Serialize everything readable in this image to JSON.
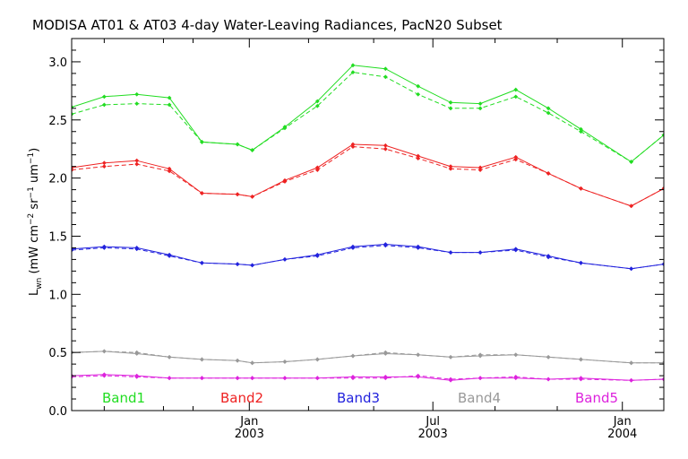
{
  "chart_data": {
    "type": "line",
    "title": "MODISA AT01 & AT03 4-day Water-Leaving Radiances, PacN20 Subset",
    "ylabel_main": "L",
    "ylabel_sub": "wn",
    "ylabel_units": "(mW cm",
    "ylabel_exp1": "−2",
    "ylabel_sr": "sr",
    "ylabel_exp2": "−1",
    "ylabel_um": "um",
    "ylabel_exp3": "−1",
    "ylabel_close": ")",
    "ylim": [
      0.0,
      3.2
    ],
    "y_ticks": [
      "0.0",
      "0.5",
      "1.0",
      "1.5",
      "2.0",
      "2.5",
      "3.0"
    ],
    "xlim": [
      0,
      100
    ],
    "x_ticks": [
      {
        "month": "Jan",
        "year": "2003",
        "x": 30
      },
      {
        "month": "Jul",
        "year": "2003",
        "x": 61
      },
      {
        "month": "Jan",
        "year": "2004",
        "x": 93
      }
    ],
    "x": [
      0,
      5.5,
      11,
      16.5,
      22,
      28,
      30.5,
      36,
      41.5,
      47.5,
      53,
      58.5,
      64,
      69,
      75,
      80.5,
      86,
      94.5,
      100
    ],
    "series": [
      {
        "name": "Band1",
        "color": "#22dd22",
        "solid": [
          2.61,
          2.7,
          2.72,
          2.69,
          2.31,
          2.29,
          2.24,
          2.44,
          2.66,
          2.97,
          2.94,
          2.79,
          2.65,
          2.64,
          2.76,
          2.6,
          2.42,
          2.14,
          2.37
        ],
        "dashed": [
          2.55,
          2.63,
          2.64,
          2.63,
          2.31,
          2.29,
          2.24,
          2.43,
          2.62,
          2.91,
          2.87,
          2.72,
          2.6,
          2.6,
          2.7,
          2.56,
          2.4,
          2.14,
          2.37
        ]
      },
      {
        "name": "Band2",
        "color": "#ee2222",
        "solid": [
          2.09,
          2.13,
          2.15,
          2.08,
          1.87,
          1.86,
          1.84,
          1.98,
          2.09,
          2.29,
          2.28,
          2.19,
          2.1,
          2.09,
          2.18,
          2.04,
          1.91,
          1.76,
          1.91
        ],
        "dashed": [
          2.07,
          2.1,
          2.12,
          2.06,
          1.87,
          1.86,
          1.84,
          1.97,
          2.07,
          2.27,
          2.25,
          2.17,
          2.08,
          2.07,
          2.16,
          2.04,
          1.91,
          1.76,
          1.91
        ]
      },
      {
        "name": "Band3",
        "color": "#2222dd",
        "solid": [
          1.39,
          1.41,
          1.4,
          1.34,
          1.27,
          1.26,
          1.25,
          1.3,
          1.34,
          1.41,
          1.43,
          1.41,
          1.36,
          1.36,
          1.39,
          1.33,
          1.27,
          1.22,
          1.26
        ],
        "dashed": [
          1.38,
          1.4,
          1.39,
          1.33,
          1.27,
          1.26,
          1.25,
          1.3,
          1.33,
          1.4,
          1.42,
          1.4,
          1.36,
          1.36,
          1.38,
          1.32,
          1.27,
          1.22,
          1.26
        ]
      },
      {
        "name": "Band4",
        "color": "#999999",
        "solid": [
          0.5,
          0.51,
          0.49,
          0.46,
          0.44,
          0.43,
          0.41,
          0.42,
          0.44,
          0.47,
          0.49,
          0.48,
          0.46,
          0.47,
          0.48,
          0.46,
          0.44,
          0.41,
          0.41
        ],
        "dashed": [
          0.5,
          0.51,
          0.5,
          0.46,
          0.44,
          0.43,
          0.41,
          0.42,
          0.44,
          0.47,
          0.5,
          0.48,
          0.46,
          0.48,
          0.48,
          0.46,
          0.44,
          0.41,
          0.41
        ]
      },
      {
        "name": "Band5",
        "color": "#dd22dd",
        "solid": [
          0.3,
          0.31,
          0.3,
          0.28,
          0.28,
          0.28,
          0.28,
          0.28,
          0.28,
          0.29,
          0.29,
          0.29,
          0.26,
          0.28,
          0.28,
          0.27,
          0.28,
          0.26,
          0.27
        ],
        "dashed": [
          0.29,
          0.3,
          0.29,
          0.28,
          0.28,
          0.28,
          0.28,
          0.28,
          0.28,
          0.28,
          0.28,
          0.3,
          0.27,
          0.28,
          0.29,
          0.27,
          0.27,
          0.26,
          0.27
        ]
      }
    ],
    "legend_placement": "bottom"
  }
}
